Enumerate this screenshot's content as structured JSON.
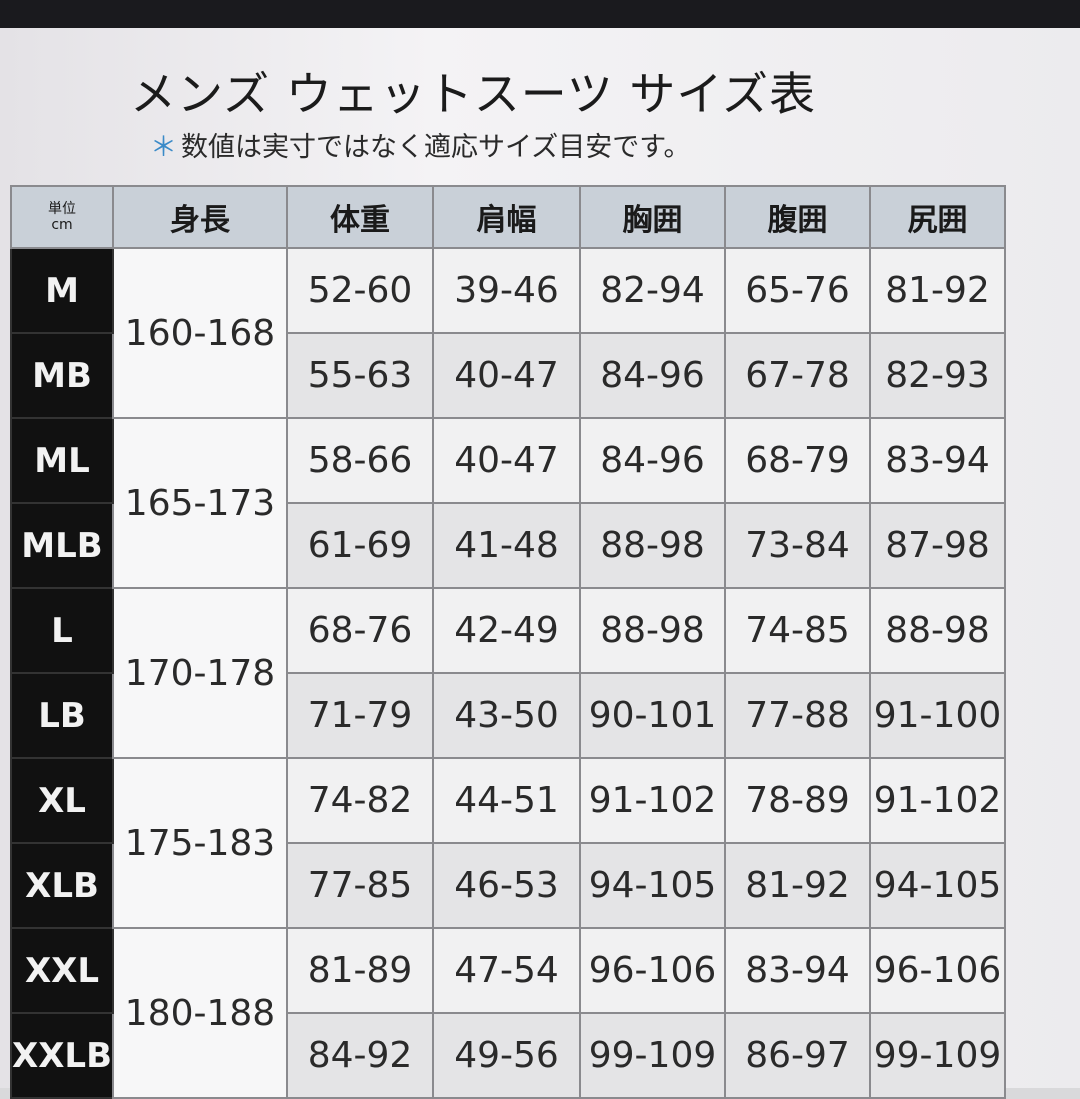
{
  "title": "メンズ ウェットスーツ サイズ表",
  "subtitle_mark": "＊",
  "subtitle": "数値は実寸ではなく適応サイズ目安です。",
  "headers": {
    "unit_top": "単位",
    "unit_bottom": "cm",
    "cols": [
      "身長",
      "体重",
      "肩幅",
      "胸囲",
      "腹囲",
      "尻囲"
    ]
  },
  "groups": [
    {
      "height": "160-168",
      "rows": [
        {
          "size": "M",
          "vals": [
            "52-60",
            "39-46",
            "82-94",
            "65-76",
            "81-92"
          ]
        },
        {
          "size": "MB",
          "vals": [
            "55-63",
            "40-47",
            "84-96",
            "67-78",
            "82-93"
          ]
        }
      ]
    },
    {
      "height": "165-173",
      "rows": [
        {
          "size": "ML",
          "vals": [
            "58-66",
            "40-47",
            "84-96",
            "68-79",
            "83-94"
          ]
        },
        {
          "size": "MLB",
          "vals": [
            "61-69",
            "41-48",
            "88-98",
            "73-84",
            "87-98"
          ]
        }
      ]
    },
    {
      "height": "170-178",
      "rows": [
        {
          "size": "L",
          "vals": [
            "68-76",
            "42-49",
            "88-98",
            "74-85",
            "88-98"
          ]
        },
        {
          "size": "LB",
          "vals": [
            "71-79",
            "43-50",
            "90-101",
            "77-88",
            "91-100"
          ]
        }
      ]
    },
    {
      "height": "175-183",
      "rows": [
        {
          "size": "XL",
          "vals": [
            "74-82",
            "44-51",
            "91-102",
            "78-89",
            "91-102"
          ]
        },
        {
          "size": "XLB",
          "vals": [
            "77-85",
            "46-53",
            "94-105",
            "81-92",
            "94-105"
          ]
        }
      ]
    },
    {
      "height": "180-188",
      "rows": [
        {
          "size": "XXL",
          "vals": [
            "81-89",
            "47-54",
            "96-106",
            "83-94",
            "96-106"
          ]
        },
        {
          "size": "XXLB",
          "vals": [
            "84-92",
            "49-56",
            "99-109",
            "86-97",
            "99-109"
          ]
        }
      ]
    }
  ]
}
